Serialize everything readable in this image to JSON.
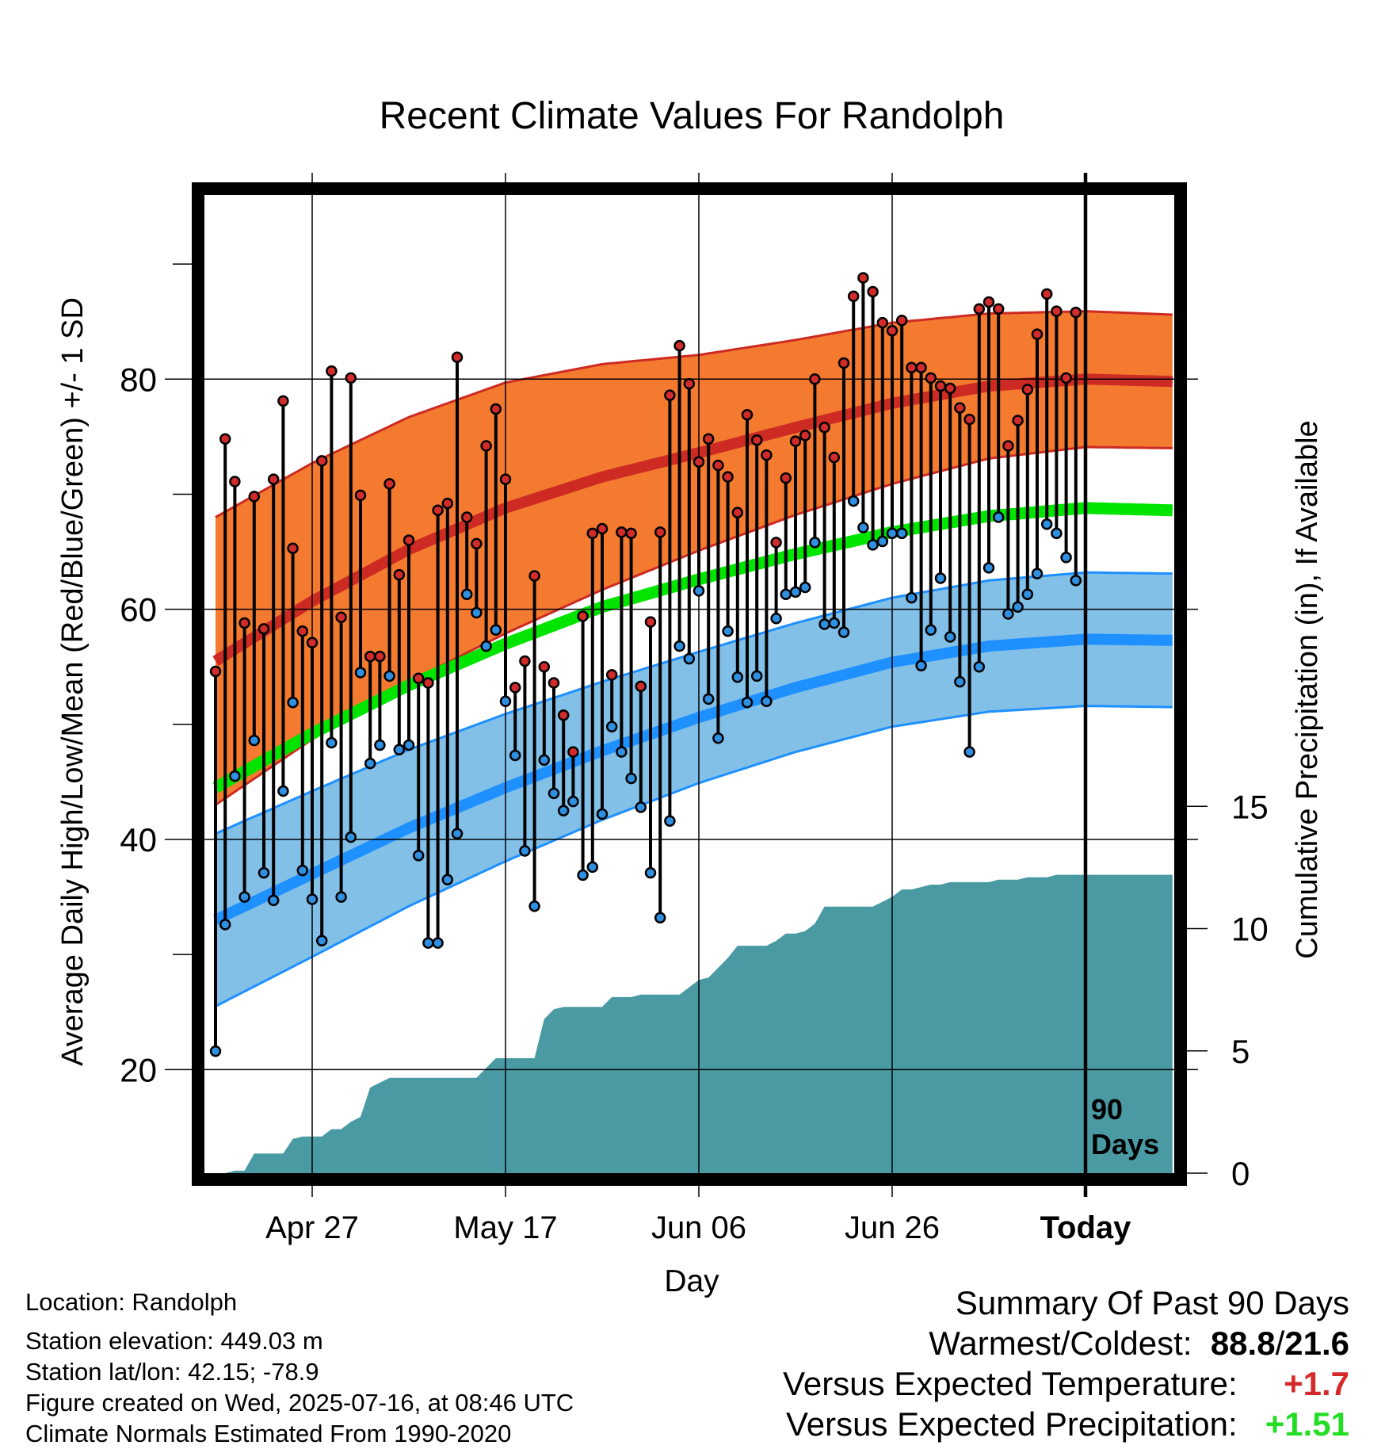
{
  "chart_data": {
    "type": "line",
    "title": "Recent Climate Values For Randolph",
    "xlabel": "Day",
    "ylabel": "Average Daily High/Low/Mean (Red/Blue/Green) +/- 1 SD",
    "ylabel_right": "Cumulative Precipitation (in), If Available",
    "x_ticks": [
      "Apr 27",
      "May 17",
      "Jun 06",
      "Jun 26",
      "Today"
    ],
    "x_tick_day_index": [
      10,
      30,
      50,
      70,
      90
    ],
    "xlim_days": [
      0,
      99
    ],
    "ylim": [
      11,
      96
    ],
    "y_ticks": [
      20,
      40,
      60,
      80
    ],
    "y2_ticks": [
      0,
      5,
      10,
      15
    ],
    "y2lim": [
      0,
      40
    ],
    "marker_label": "90\nDays",
    "colors": {
      "high": "#cc2a22",
      "high_band": "#f47a30",
      "low": "#1e90ff",
      "low_band": "#82c0e8",
      "mean": "#00e400",
      "precip": "#4a9aa4"
    },
    "normals": {
      "x": [
        0,
        10,
        20,
        30,
        40,
        50,
        60,
        70,
        80,
        90,
        99
      ],
      "high_mean": [
        55.5,
        60.7,
        65.2,
        68.8,
        71.5,
        73.6,
        75.8,
        77.9,
        79.4,
        80.0,
        79.8
      ],
      "high_sd": [
        12.5,
        12.0,
        11.5,
        10.9,
        9.8,
        8.5,
        7.6,
        7.0,
        6.3,
        5.9,
        5.8
      ],
      "low_mean": [
        33.0,
        37.0,
        41.0,
        44.5,
        47.7,
        50.6,
        53.2,
        55.4,
        56.8,
        57.4,
        57.3
      ],
      "low_sd": [
        7.5,
        7.2,
        6.8,
        6.4,
        6.0,
        5.7,
        5.6,
        5.6,
        5.7,
        5.8,
        5.8
      ],
      "mean": [
        44.5,
        49.2,
        53.4,
        57.0,
        60.2,
        62.6,
        64.8,
        66.7,
        68.1,
        68.8,
        68.6
      ]
    },
    "observed": {
      "high": [
        54.6,
        74.8,
        71.1,
        58.8,
        69.8,
        58.3,
        71.3,
        78.1,
        65.3,
        58.1,
        57.1,
        72.9,
        80.7,
        59.3,
        80.1,
        69.9,
        55.9,
        55.9,
        70.9,
        63.0,
        66.0,
        54.0,
        53.6,
        68.6,
        69.2,
        81.9,
        68.0,
        65.7,
        74.2,
        77.4,
        71.3,
        53.2,
        55.5,
        62.9,
        55.0,
        53.6,
        50.8,
        47.6,
        59.4,
        66.6,
        67.0,
        54.3,
        66.7,
        66.6,
        53.3,
        58.9,
        66.7,
        78.6,
        82.9,
        79.6,
        72.8,
        74.8,
        72.5,
        71.5,
        68.4,
        76.9,
        74.7,
        73.4,
        65.8,
        71.4,
        74.6,
        75.1,
        80.0,
        75.8,
        73.2,
        81.4,
        87.2,
        88.8,
        87.6,
        84.9,
        84.2,
        85.1,
        81.0,
        81.0,
        80.1,
        79.4,
        79.2,
        77.5,
        76.5,
        86.1,
        86.7,
        86.1,
        74.2,
        76.4,
        79.1,
        83.9,
        87.4,
        85.9,
        80.1,
        85.8
      ],
      "low": [
        21.6,
        32.6,
        45.5,
        35.0,
        48.6,
        37.1,
        34.7,
        44.2,
        51.9,
        37.3,
        34.8,
        31.2,
        48.4,
        35.0,
        40.2,
        54.5,
        46.6,
        48.2,
        54.2,
        47.8,
        48.2,
        38.6,
        31.0,
        31.0,
        36.5,
        40.5,
        61.3,
        59.7,
        56.8,
        58.2,
        52.0,
        47.3,
        39.0,
        34.2,
        46.9,
        44.0,
        42.5,
        43.3,
        36.9,
        37.6,
        42.2,
        49.8,
        47.6,
        45.3,
        42.8,
        37.1,
        33.2,
        41.6,
        56.8,
        55.7,
        61.6,
        52.2,
        48.8,
        58.1,
        54.1,
        51.9,
        54.2,
        52.0,
        59.2,
        61.3,
        61.5,
        61.9,
        65.8,
        58.7,
        58.8,
        58.0,
        69.4,
        67.1,
        65.6,
        65.9,
        66.6,
        66.6,
        61.0,
        55.1,
        58.2,
        62.7,
        57.6,
        53.7,
        47.6,
        55.0,
        63.6,
        68.0,
        59.6,
        60.2,
        61.3,
        63.1,
        67.4,
        66.6,
        64.5,
        62.5
      ]
    },
    "precip": {
      "x": [
        0,
        1,
        2,
        3,
        4,
        5,
        6,
        7,
        8,
        9,
        10,
        11,
        12,
        13,
        14,
        15,
        16,
        17,
        18,
        19,
        20,
        21,
        22,
        23,
        24,
        25,
        26,
        27,
        28,
        29,
        30,
        31,
        32,
        33,
        34,
        35,
        36,
        37,
        38,
        39,
        40,
        41,
        42,
        43,
        44,
        45,
        46,
        47,
        48,
        49,
        50,
        51,
        52,
        53,
        54,
        55,
        56,
        57,
        58,
        59,
        60,
        61,
        62,
        63,
        64,
        65,
        66,
        67,
        68,
        69,
        70,
        71,
        72,
        73,
        74,
        75,
        76,
        77,
        78,
        79,
        80,
        81,
        82,
        83,
        84,
        85,
        86,
        87,
        88,
        89,
        99
      ],
      "cumulative": [
        0.0,
        0.0,
        0.1,
        0.1,
        0.8,
        0.8,
        0.8,
        0.8,
        1.4,
        1.5,
        1.5,
        1.5,
        1.8,
        1.8,
        2.1,
        2.3,
        3.5,
        3.7,
        3.9,
        3.9,
        3.9,
        3.9,
        3.9,
        3.9,
        3.9,
        3.9,
        3.9,
        3.9,
        4.3,
        4.7,
        4.7,
        4.7,
        4.7,
        4.7,
        6.3,
        6.7,
        6.8,
        6.8,
        6.8,
        6.8,
        6.8,
        7.2,
        7.2,
        7.2,
        7.3,
        7.3,
        7.3,
        7.3,
        7.3,
        7.6,
        7.9,
        8.0,
        8.4,
        8.8,
        9.3,
        9.3,
        9.3,
        9.3,
        9.5,
        9.8,
        9.8,
        9.9,
        10.2,
        10.9,
        10.9,
        10.9,
        10.9,
        10.9,
        10.9,
        11.1,
        11.3,
        11.6,
        11.6,
        11.7,
        11.8,
        11.8,
        11.9,
        11.9,
        11.9,
        11.9,
        11.9,
        12.0,
        12.0,
        12.0,
        12.1,
        12.1,
        12.1,
        12.2,
        12.2,
        12.2,
        12.2
      ]
    }
  },
  "info": {
    "location": "Location: Randolph",
    "elevation": "Station elevation: 449.03 m",
    "latlon": "Station lat/lon: 42.15; -78.9",
    "created": "Figure created on Wed, 2025-07-16, at 08:46 UTC",
    "normals": "Climate Normals Estimated From 1990-2020"
  },
  "summary": {
    "heading": "Summary Of Past 90 Days",
    "extremes_label": "Warmest/Coldest:",
    "warmest": "88.8",
    "slash": "/",
    "coldest": "21.6",
    "temp_label": "Versus Expected Temperature:",
    "temp_value": "+1.7",
    "temp_color": "#d62a2a",
    "precip_label": "Versus Expected Precipitation:",
    "precip_value": "+1.51",
    "precip_color": "#22dd22"
  }
}
